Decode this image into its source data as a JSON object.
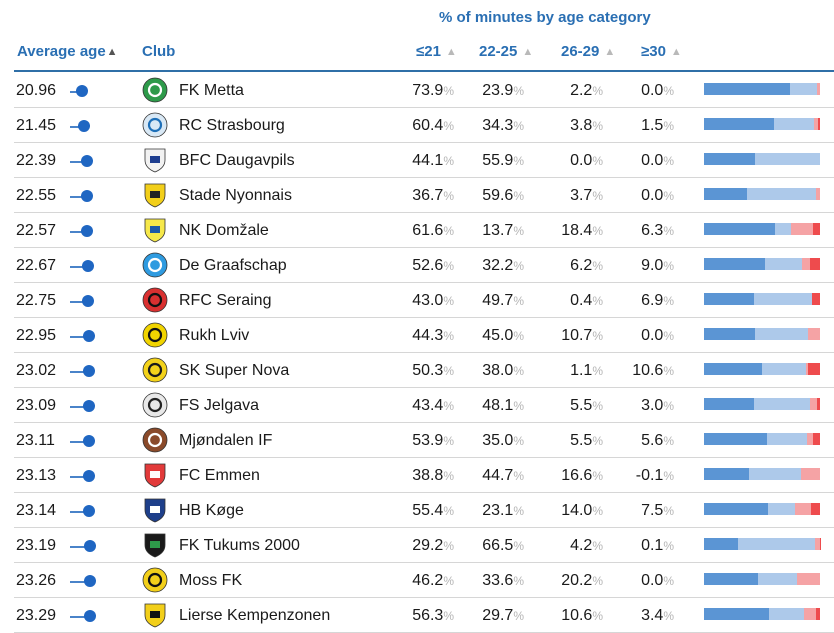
{
  "header": {
    "super_title": "% of minutes by age category",
    "average_age": "Average age",
    "club": "Club",
    "categories": [
      "≤21",
      "22-25",
      "26-29",
      "≥30"
    ]
  },
  "colors": {
    "u21": "#5b95d4",
    "a22_25": "#adc9ea",
    "a26_29": "#f5a3a5",
    "a30": "#ee4b4d",
    "accent": "#2a6fb3"
  },
  "chart_data": {
    "type": "table",
    "title": "% of minutes by age category",
    "columns": [
      "Average age",
      "Club",
      "≤21",
      "22-25",
      "26-29",
      "≥30"
    ],
    "rows": [
      {
        "age": "20.96",
        "club": "FK Metta",
        "logo": "fk-metta-crest-icon",
        "vals": [
          "73.9",
          "23.9",
          "2.2",
          "0.0"
        ]
      },
      {
        "age": "21.45",
        "club": "RC Strasbourg",
        "logo": "rc-strasbourg-crest-icon",
        "vals": [
          "60.4",
          "34.3",
          "3.8",
          "1.5"
        ]
      },
      {
        "age": "22.39",
        "club": "BFC Daugavpils",
        "logo": "bfc-daugavpils-crest-icon",
        "vals": [
          "44.1",
          "55.9",
          "0.0",
          "0.0"
        ]
      },
      {
        "age": "22.55",
        "club": "Stade Nyonnais",
        "logo": "stade-nyonnais-crest-icon",
        "vals": [
          "36.7",
          "59.6",
          "3.7",
          "0.0"
        ]
      },
      {
        "age": "22.57",
        "club": "NK Domžale",
        "logo": "nk-domzale-crest-icon",
        "vals": [
          "61.6",
          "13.7",
          "18.4",
          "6.3"
        ]
      },
      {
        "age": "22.67",
        "club": "De Graafschap",
        "logo": "de-graafschap-crest-icon",
        "vals": [
          "52.6",
          "32.2",
          "6.2",
          "9.0"
        ]
      },
      {
        "age": "22.75",
        "club": "RFC Seraing",
        "logo": "rfc-seraing-crest-icon",
        "vals": [
          "43.0",
          "49.7",
          "0.4",
          "6.9"
        ]
      },
      {
        "age": "22.95",
        "club": "Rukh Lviv",
        "logo": "rukh-lviv-crest-icon",
        "vals": [
          "44.3",
          "45.0",
          "10.7",
          "0.0"
        ]
      },
      {
        "age": "23.02",
        "club": "SK Super Nova",
        "logo": "sk-super-nova-crest-icon",
        "vals": [
          "50.3",
          "38.0",
          "1.1",
          "10.6"
        ]
      },
      {
        "age": "23.09",
        "club": "FS Jelgava",
        "logo": "fs-jelgava-crest-icon",
        "vals": [
          "43.4",
          "48.1",
          "5.5",
          "3.0"
        ]
      },
      {
        "age": "23.11",
        "club": "Mjøndalen IF",
        "logo": "mjondalen-crest-icon",
        "vals": [
          "53.9",
          "35.0",
          "5.5",
          "5.6"
        ]
      },
      {
        "age": "23.13",
        "club": "FC Emmen",
        "logo": "fc-emmen-crest-icon",
        "vals": [
          "38.8",
          "44.7",
          "16.6",
          "-0.1"
        ]
      },
      {
        "age": "23.14",
        "club": "HB Køge",
        "logo": "hb-koge-crest-icon",
        "vals": [
          "55.4",
          "23.1",
          "14.0",
          "7.5"
        ]
      },
      {
        "age": "23.19",
        "club": "FK Tukums 2000",
        "logo": "fk-tukums-crest-icon",
        "vals": [
          "29.2",
          "66.5",
          "4.2",
          "0.1"
        ]
      },
      {
        "age": "23.26",
        "club": "Moss FK",
        "logo": "moss-fk-crest-icon",
        "vals": [
          "46.2",
          "33.6",
          "20.2",
          "0.0"
        ]
      },
      {
        "age": "23.29",
        "club": "Lierse Kempenzonen",
        "logo": "lierse-crest-icon",
        "vals": [
          "56.3",
          "29.7",
          "10.6",
          "3.4"
        ]
      }
    ]
  }
}
